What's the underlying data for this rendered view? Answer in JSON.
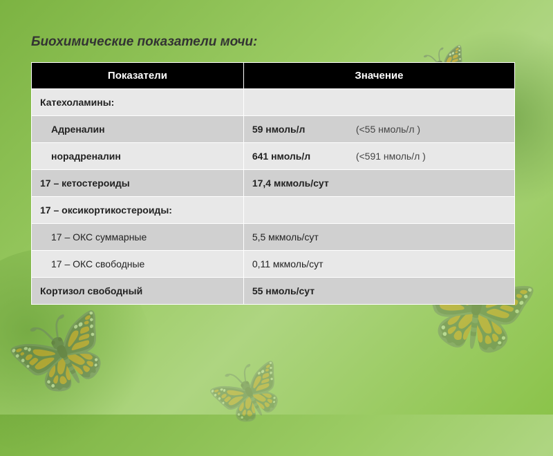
{
  "title": "Биохимические показатели мочи:",
  "table": {
    "headers": [
      "Показатели",
      "Значение"
    ],
    "rows": [
      {
        "label": "Катехоламины:",
        "value": "",
        "ref": "",
        "bold": true,
        "indent": false,
        "shade": "A"
      },
      {
        "label": "Адреналин",
        "value": "59 нмоль/л",
        "ref": "(<55 нмоль/л )",
        "bold": true,
        "indent": true,
        "shade": "B"
      },
      {
        "label": "норадреналин",
        "value": "641 нмоль/л",
        "ref": "(<591 нмоль/л )",
        "bold": true,
        "indent": true,
        "shade": "A"
      },
      {
        "label": "17 – кетостероиды",
        "value": "17,4 мкмоль/сут",
        "ref": "",
        "bold": true,
        "indent": false,
        "shade": "B"
      },
      {
        "label": "17 – оксикортикостероиды:",
        "value": "",
        "ref": "",
        "bold": true,
        "indent": false,
        "shade": "A"
      },
      {
        "label": "17 – ОКС суммарные",
        "value": "5,5 мкмоль/сут",
        "ref": "",
        "bold": false,
        "indent": true,
        "shade": "B"
      },
      {
        "label": "17 – ОКС свободные",
        "value": "0,11 мкмоль/сут",
        "ref": "",
        "bold": false,
        "indent": true,
        "shade": "A"
      },
      {
        "label": "Кортизол свободный",
        "value": "55 нмоль/сут",
        "ref": "",
        "bold": true,
        "indent": false,
        "shade": "B"
      }
    ]
  },
  "colors": {
    "header_bg": "#000000",
    "header_fg": "#ffffff",
    "row_light": "#e8e8e8",
    "row_dark": "#d0d0d0",
    "text": "#222222"
  }
}
